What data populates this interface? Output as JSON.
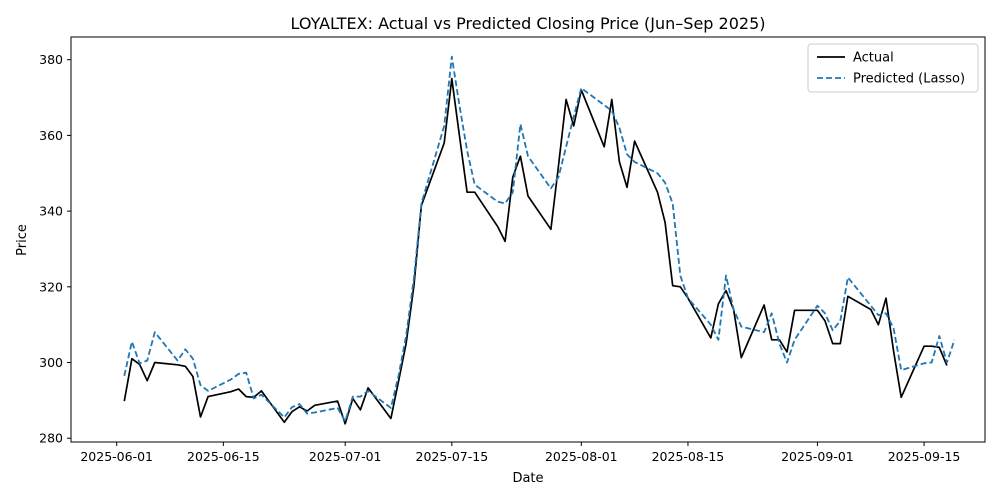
{
  "chart_data": {
    "type": "line",
    "title": "LOYALTEX: Actual vs Predicted Closing Price (Jun–Sep 2025)",
    "xlabel": "Date",
    "ylabel": "Price",
    "x_range": [
      "2025-05-26",
      "2025-09-23"
    ],
    "ylim": [
      279,
      386
    ],
    "grid": false,
    "legend_position": "top-right",
    "x_ticks": [
      "2025-06-01",
      "2025-06-15",
      "2025-07-01",
      "2025-07-15",
      "2025-08-01",
      "2025-08-15",
      "2025-09-01",
      "2025-09-15"
    ],
    "y_ticks": [
      280,
      300,
      320,
      340,
      360,
      380
    ],
    "series": [
      {
        "name": "Actual",
        "color": "#000000",
        "style": "solid",
        "points": [
          [
            "2025-06-02",
            289.8
          ],
          [
            "2025-06-03",
            301.0
          ],
          [
            "2025-06-04",
            299.5
          ],
          [
            "2025-06-05",
            295.2
          ],
          [
            "2025-06-06",
            300.0
          ],
          [
            "2025-06-09",
            299.4
          ],
          [
            "2025-06-10",
            299.0
          ],
          [
            "2025-06-11",
            296.3
          ],
          [
            "2025-06-12",
            285.6
          ],
          [
            "2025-06-13",
            291.0
          ],
          [
            "2025-06-16",
            292.3
          ],
          [
            "2025-06-17",
            293.0
          ],
          [
            "2025-06-18",
            291.0
          ],
          [
            "2025-06-19",
            290.8
          ],
          [
            "2025-06-20",
            292.5
          ],
          [
            "2025-06-23",
            284.2
          ],
          [
            "2025-06-24",
            287.0
          ],
          [
            "2025-06-25",
            288.3
          ],
          [
            "2025-06-26",
            287.2
          ],
          [
            "2025-06-27",
            288.7
          ],
          [
            "2025-06-30",
            289.8
          ],
          [
            "2025-07-01",
            283.8
          ],
          [
            "2025-07-02",
            290.5
          ],
          [
            "2025-07-03",
            287.5
          ],
          [
            "2025-07-04",
            293.3
          ],
          [
            "2025-07-07",
            285.2
          ],
          [
            "2025-07-08",
            295.0
          ],
          [
            "2025-07-09",
            305.0
          ],
          [
            "2025-07-10",
            320.0
          ],
          [
            "2025-07-11",
            341.5
          ],
          [
            "2025-07-14",
            358.0
          ],
          [
            "2025-07-15",
            375.0
          ],
          [
            "2025-07-16",
            360.0
          ],
          [
            "2025-07-17",
            345.0
          ],
          [
            "2025-07-18",
            345.0
          ],
          [
            "2025-07-21",
            336.0
          ],
          [
            "2025-07-22",
            332.0
          ],
          [
            "2025-07-23",
            349.0
          ],
          [
            "2025-07-24",
            354.5
          ],
          [
            "2025-07-25",
            344.0
          ],
          [
            "2025-07-28",
            335.2
          ],
          [
            "2025-07-29",
            352.0
          ],
          [
            "2025-07-30",
            369.5
          ],
          [
            "2025-07-31",
            362.5
          ],
          [
            "2025-08-01",
            372.0
          ],
          [
            "2025-08-04",
            357.0
          ],
          [
            "2025-08-05",
            369.5
          ],
          [
            "2025-08-06",
            353.0
          ],
          [
            "2025-08-07",
            346.3
          ],
          [
            "2025-08-08",
            358.5
          ],
          [
            "2025-08-11",
            345.0
          ],
          [
            "2025-08-12",
            337.0
          ],
          [
            "2025-08-13",
            320.3
          ],
          [
            "2025-08-14",
            320.0
          ],
          [
            "2025-08-15",
            317.0
          ],
          [
            "2025-08-18",
            306.5
          ],
          [
            "2025-08-19",
            315.5
          ],
          [
            "2025-08-20",
            319.0
          ],
          [
            "2025-08-21",
            314.0
          ],
          [
            "2025-08-22",
            301.3
          ],
          [
            "2025-08-25",
            315.2
          ],
          [
            "2025-08-26",
            306.0
          ],
          [
            "2025-08-27",
            306.0
          ],
          [
            "2025-08-28",
            302.8
          ],
          [
            "2025-08-29",
            313.8
          ],
          [
            "2025-09-01",
            313.8
          ],
          [
            "2025-09-02",
            311.0
          ],
          [
            "2025-09-03",
            305.0
          ],
          [
            "2025-09-04",
            305.0
          ],
          [
            "2025-09-05",
            317.5
          ],
          [
            "2025-09-08",
            314.0
          ],
          [
            "2025-09-09",
            310.0
          ],
          [
            "2025-09-10",
            317.0
          ],
          [
            "2025-09-11",
            303.0
          ],
          [
            "2025-09-12",
            290.8
          ],
          [
            "2025-09-15",
            304.3
          ],
          [
            "2025-09-16",
            304.3
          ],
          [
            "2025-09-17",
            304.0
          ],
          [
            "2025-09-18",
            299.2
          ]
        ]
      },
      {
        "name": "Predicted (Lasso)",
        "color": "#1f77b4",
        "style": "dashed",
        "points": [
          [
            "2025-06-02",
            296.5
          ],
          [
            "2025-06-03",
            305.5
          ],
          [
            "2025-06-04",
            299.8
          ],
          [
            "2025-06-05",
            300.5
          ],
          [
            "2025-06-06",
            308.0
          ],
          [
            "2025-06-09",
            300.5
          ],
          [
            "2025-06-10",
            303.5
          ],
          [
            "2025-06-11",
            301.0
          ],
          [
            "2025-06-12",
            294.0
          ],
          [
            "2025-06-13",
            292.5
          ],
          [
            "2025-06-16",
            295.5
          ],
          [
            "2025-06-17",
            297.0
          ],
          [
            "2025-06-18",
            297.3
          ],
          [
            "2025-06-19",
            290.5
          ],
          [
            "2025-06-20",
            291.5
          ],
          [
            "2025-06-23",
            285.5
          ],
          [
            "2025-06-24",
            288.2
          ],
          [
            "2025-06-25",
            289.0
          ],
          [
            "2025-06-26",
            286.5
          ],
          [
            "2025-06-27",
            286.8
          ],
          [
            "2025-06-30",
            288.0
          ],
          [
            "2025-07-01",
            284.5
          ],
          [
            "2025-07-02",
            291.0
          ],
          [
            "2025-07-03",
            291.0
          ],
          [
            "2025-07-04",
            292.5
          ],
          [
            "2025-07-07",
            288.0
          ],
          [
            "2025-07-08",
            296.5
          ],
          [
            "2025-07-09",
            307.0
          ],
          [
            "2025-07-10",
            322.0
          ],
          [
            "2025-07-11",
            342.0
          ],
          [
            "2025-07-14",
            362.5
          ],
          [
            "2025-07-15",
            380.8
          ],
          [
            "2025-07-16",
            368.0
          ],
          [
            "2025-07-17",
            356.0
          ],
          [
            "2025-07-18",
            347.0
          ],
          [
            "2025-07-21",
            342.5
          ],
          [
            "2025-07-22",
            342.0
          ],
          [
            "2025-07-23",
            345.0
          ],
          [
            "2025-07-24",
            363.0
          ],
          [
            "2025-07-25",
            354.5
          ],
          [
            "2025-07-28",
            346.0
          ],
          [
            "2025-07-29",
            349.0
          ],
          [
            "2025-07-30",
            357.0
          ],
          [
            "2025-07-31",
            365.0
          ],
          [
            "2025-08-01",
            372.5
          ],
          [
            "2025-08-04",
            368.0
          ],
          [
            "2025-08-05",
            366.5
          ],
          [
            "2025-08-06",
            362.0
          ],
          [
            "2025-08-07",
            355.0
          ],
          [
            "2025-08-08",
            353.0
          ],
          [
            "2025-08-11",
            350.0
          ],
          [
            "2025-08-12",
            347.5
          ],
          [
            "2025-08-13",
            342.0
          ],
          [
            "2025-08-14",
            323.0
          ],
          [
            "2025-08-15",
            317.0
          ],
          [
            "2025-08-18",
            310.0
          ],
          [
            "2025-08-19",
            306.0
          ],
          [
            "2025-08-20",
            323.0
          ],
          [
            "2025-08-21",
            314.0
          ],
          [
            "2025-08-22",
            309.5
          ],
          [
            "2025-08-25",
            308.0
          ],
          [
            "2025-08-26",
            313.0
          ],
          [
            "2025-08-27",
            305.0
          ],
          [
            "2025-08-28",
            300.0
          ],
          [
            "2025-08-29",
            306.0
          ],
          [
            "2025-09-01",
            315.0
          ],
          [
            "2025-09-02",
            313.0
          ],
          [
            "2025-09-03",
            308.5
          ],
          [
            "2025-09-04",
            311.0
          ],
          [
            "2025-09-05",
            322.5
          ],
          [
            "2025-09-08",
            315.0
          ],
          [
            "2025-09-09",
            312.5
          ],
          [
            "2025-09-10",
            313.0
          ],
          [
            "2025-09-11",
            309.0
          ],
          [
            "2025-09-12",
            298.0
          ],
          [
            "2025-09-15",
            299.8
          ],
          [
            "2025-09-16",
            300.0
          ],
          [
            "2025-09-17",
            307.0
          ],
          [
            "2025-09-18",
            300.0
          ],
          [
            "2025-09-19",
            306.0
          ]
        ]
      }
    ]
  }
}
